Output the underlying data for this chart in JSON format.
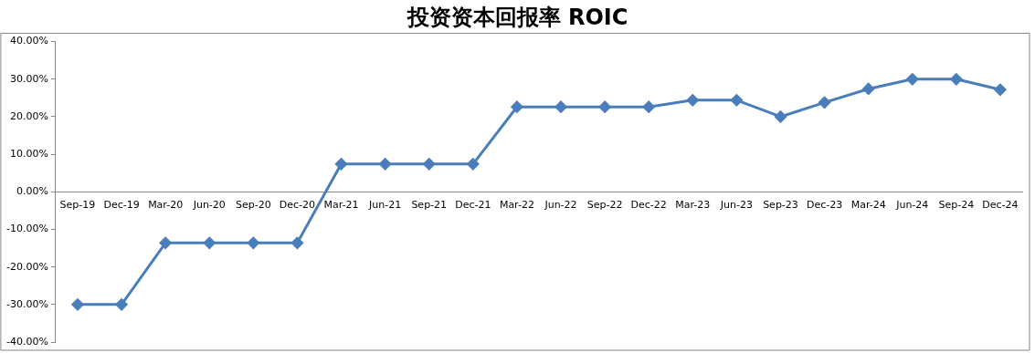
{
  "chart_data": {
    "type": "line",
    "title": "投资资本回报率 ROIC",
    "categories": [
      "Sep-19",
      "Dec-19",
      "Mar-20",
      "Jun-20",
      "Sep-20",
      "Dec-20",
      "Mar-21",
      "Jun-21",
      "Sep-21",
      "Dec-21",
      "Mar-22",
      "Jun-22",
      "Sep-22",
      "Dec-22",
      "Mar-23",
      "Jun-23",
      "Sep-23",
      "Dec-23",
      "Mar-24",
      "Jun-24",
      "Sep-24",
      "Dec-24"
    ],
    "series": [
      {
        "color": "#4a7ebb",
        "values": [
          -30.0,
          -30.0,
          -13.6,
          -13.6,
          -13.6,
          -13.6,
          7.4,
          7.4,
          7.4,
          7.4,
          22.6,
          22.6,
          22.6,
          22.6,
          24.4,
          24.4,
          20.0,
          23.8,
          27.4,
          30.0,
          30.0,
          27.2
        ]
      }
    ],
    "ylim": [
      -40,
      40
    ],
    "yticks": [
      {
        "value": -40,
        "label": "-40.00%"
      },
      {
        "value": -30,
        "label": "-30.00%"
      },
      {
        "value": -20,
        "label": "-20.00%"
      },
      {
        "value": -10,
        "label": "-10.00%"
      },
      {
        "value": 0,
        "label": "0.00%"
      },
      {
        "value": 10,
        "label": "10.00%"
      },
      {
        "value": 20,
        "label": "20.00%"
      },
      {
        "value": 30,
        "label": "30.00%"
      },
      {
        "value": 40,
        "label": "40.00%"
      }
    ],
    "grid": false,
    "legend": false,
    "marker": "diamond",
    "line_style": "solid"
  }
}
